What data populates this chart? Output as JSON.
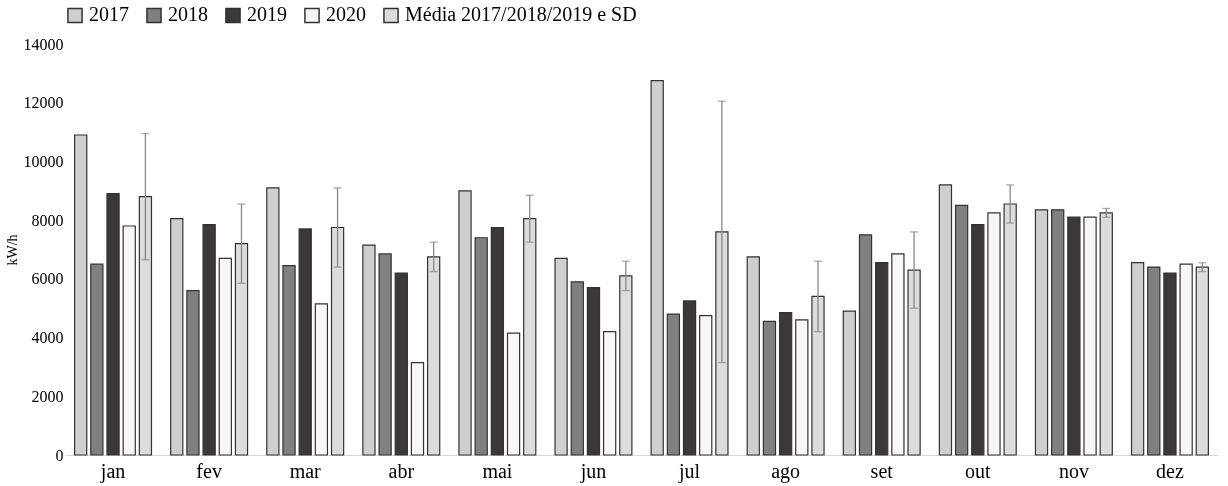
{
  "chart_data": {
    "type": "bar",
    "ylabel": "kW/h",
    "categories": [
      "jan",
      "fev",
      "mar",
      "abr",
      "mai",
      "jun",
      "jul",
      "ago",
      "set",
      "out",
      "nov",
      "dez"
    ],
    "series": [
      {
        "name": "2017",
        "color": "#d0cfd0",
        "values": [
          10900,
          8050,
          9100,
          7150,
          9000,
          6700,
          12750,
          6750,
          4900,
          9200,
          8350,
          6550
        ]
      },
      {
        "name": "2018",
        "color": "#808080",
        "values": [
          6500,
          5600,
          6450,
          6850,
          7400,
          5900,
          4800,
          4550,
          7500,
          8500,
          8350,
          6400
        ]
      },
      {
        "name": "2019",
        "color": "#3a3937",
        "values": [
          8900,
          7850,
          7700,
          6200,
          7750,
          5700,
          5250,
          4850,
          6550,
          7850,
          8100,
          6200
        ]
      },
      {
        "name": "2020",
        "color": "#f7f7f7",
        "values": [
          7800,
          6700,
          5150,
          3150,
          4150,
          4200,
          4750,
          4600,
          6850,
          8250,
          8100,
          6500
        ]
      },
      {
        "name": "Média 2017/2018/2019 e SD",
        "color": "#dcdcdc",
        "values": [
          8800,
          7200,
          7750,
          6750,
          8050,
          6100,
          7600,
          5400,
          6300,
          8550,
          8250,
          6400
        ],
        "errors": [
          2150,
          1350,
          1350,
          500,
          800,
          500,
          4450,
          1200,
          1300,
          650,
          150,
          150
        ]
      }
    ],
    "ylim": [
      0,
      14000
    ],
    "yticks": [
      0,
      2000,
      4000,
      6000,
      8000,
      10000,
      12000,
      14000
    ],
    "grid": false,
    "legend": "top"
  }
}
